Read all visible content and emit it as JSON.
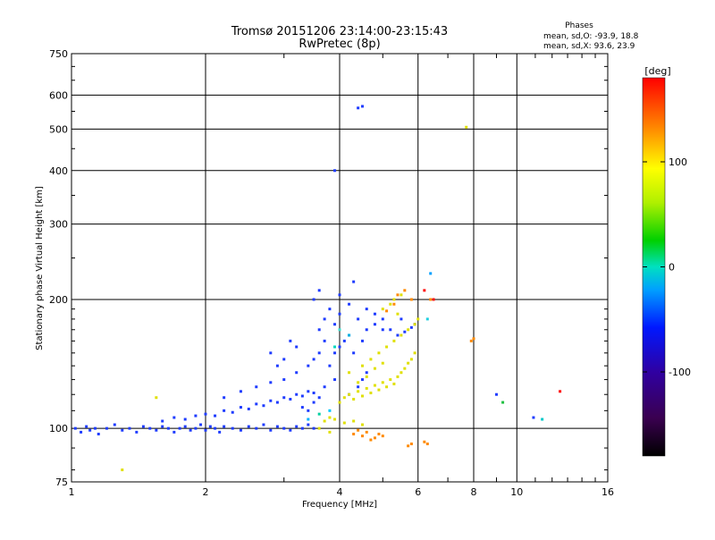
{
  "chart_data": {
    "type": "scatter",
    "title": "Tromsø 20151206 23:14:00-23:15:43",
    "subtitle": "RwPretec (8p)",
    "xlabel": "Frequency [MHz]",
    "ylabel": "Stationary phase Virtual Height [km]",
    "xscale": "log",
    "yscale": "log",
    "xlim": [
      1,
      16
    ],
    "ylim": [
      75,
      750
    ],
    "x_ticks": [
      1,
      2,
      4,
      6,
      8,
      10,
      16
    ],
    "x_tick_labels": [
      "1",
      "2",
      "4",
      "6",
      "8",
      "10",
      "16"
    ],
    "y_ticks": [
      75,
      100,
      200,
      300,
      400,
      500,
      600,
      750
    ],
    "y_tick_labels": [
      "75",
      "100",
      "200",
      "300",
      "400",
      "500",
      "600",
      "750"
    ],
    "grid": true,
    "phases_info": {
      "title": "Phases",
      "line_o": "mean, sd,O: -93.9, 18.8",
      "line_x": "mean, sd,X:  93.6, 23.9"
    },
    "colorbar": {
      "unit_label": "[deg]",
      "range": [
        -180,
        180
      ],
      "ticks": [
        100,
        0,
        -100
      ],
      "tick_labels": [
        "100",
        "0",
        "-100"
      ]
    },
    "series": [
      {
        "name": "O-mode (blue)",
        "phase": -100,
        "color": "#1f3cff",
        "points": [
          [
            1.02,
            100
          ],
          [
            1.05,
            98
          ],
          [
            1.08,
            101
          ],
          [
            1.1,
            99
          ],
          [
            1.13,
            100
          ],
          [
            1.15,
            97
          ],
          [
            1.2,
            100
          ],
          [
            1.25,
            102
          ],
          [
            1.3,
            99
          ],
          [
            1.35,
            100
          ],
          [
            1.4,
            98
          ],
          [
            1.45,
            101
          ],
          [
            1.5,
            100
          ],
          [
            1.55,
            99
          ],
          [
            1.6,
            101
          ],
          [
            1.65,
            100
          ],
          [
            1.7,
            98
          ],
          [
            1.75,
            100
          ],
          [
            1.8,
            101
          ],
          [
            1.85,
            99
          ],
          [
            1.9,
            100
          ],
          [
            1.95,
            102
          ],
          [
            2.0,
            99
          ],
          [
            2.05,
            101
          ],
          [
            2.1,
            100
          ],
          [
            2.15,
            98
          ],
          [
            2.2,
            101
          ],
          [
            2.3,
            100
          ],
          [
            2.4,
            99
          ],
          [
            2.5,
            101
          ],
          [
            2.6,
            100
          ],
          [
            2.7,
            102
          ],
          [
            2.8,
            99
          ],
          [
            2.9,
            101
          ],
          [
            3.0,
            100
          ],
          [
            3.1,
            99
          ],
          [
            3.2,
            101
          ],
          [
            3.3,
            100
          ],
          [
            3.4,
            102
          ],
          [
            3.5,
            100
          ],
          [
            1.6,
            104
          ],
          [
            1.7,
            106
          ],
          [
            1.8,
            105
          ],
          [
            1.9,
            107
          ],
          [
            2.0,
            108
          ],
          [
            2.1,
            107
          ],
          [
            2.2,
            110
          ],
          [
            2.3,
            109
          ],
          [
            2.4,
            112
          ],
          [
            2.5,
            111
          ],
          [
            2.6,
            114
          ],
          [
            2.7,
            113
          ],
          [
            2.8,
            116
          ],
          [
            2.9,
            115
          ],
          [
            3.0,
            118
          ],
          [
            3.1,
            117
          ],
          [
            3.2,
            120
          ],
          [
            3.3,
            119
          ],
          [
            3.4,
            122
          ],
          [
            3.5,
            121
          ],
          [
            2.2,
            118
          ],
          [
            2.4,
            122
          ],
          [
            2.6,
            125
          ],
          [
            2.8,
            128
          ],
          [
            3.0,
            130
          ],
          [
            3.2,
            135
          ],
          [
            3.4,
            140
          ],
          [
            3.5,
            145
          ],
          [
            3.6,
            150
          ],
          [
            3.7,
            160
          ],
          [
            3.6,
            170
          ],
          [
            3.7,
            180
          ],
          [
            3.8,
            190
          ],
          [
            3.9,
            175
          ],
          [
            4.0,
            185
          ],
          [
            4.2,
            195
          ],
          [
            4.4,
            180
          ],
          [
            4.6,
            190
          ],
          [
            4.8,
            185
          ],
          [
            5.0,
            180
          ],
          [
            3.8,
            140
          ],
          [
            3.9,
            150
          ],
          [
            4.0,
            155
          ],
          [
            4.1,
            160
          ],
          [
            4.2,
            165
          ],
          [
            4.3,
            150
          ],
          [
            4.5,
            160
          ],
          [
            4.6,
            170
          ],
          [
            4.8,
            175
          ],
          [
            5.0,
            170
          ],
          [
            4.2,
            120
          ],
          [
            4.4,
            125
          ],
          [
            4.5,
            130
          ],
          [
            4.6,
            135
          ],
          [
            3.9,
            130
          ],
          [
            3.7,
            125
          ],
          [
            3.5,
            115
          ],
          [
            3.4,
            110
          ],
          [
            3.3,
            112
          ],
          [
            3.6,
            118
          ],
          [
            3.5,
            200
          ],
          [
            3.6,
            210
          ],
          [
            4.3,
            220
          ],
          [
            4.0,
            205
          ],
          [
            5.2,
            170
          ],
          [
            5.4,
            165
          ],
          [
            5.6,
            168
          ],
          [
            5.8,
            172
          ],
          [
            5.9,
            175
          ],
          [
            5.5,
            180
          ],
          [
            3.9,
            400
          ],
          [
            4.4,
            560
          ],
          [
            4.5,
            565
          ],
          [
            10.9,
            106
          ],
          [
            9.0,
            120
          ],
          [
            3.0,
            145
          ],
          [
            2.8,
            150
          ],
          [
            3.2,
            155
          ],
          [
            3.1,
            160
          ],
          [
            2.9,
            140
          ]
        ]
      },
      {
        "name": "X-mode (yellow)",
        "phase": 100,
        "color": "#e0e000",
        "points": [
          [
            4.0,
            115
          ],
          [
            4.1,
            118
          ],
          [
            4.2,
            120
          ],
          [
            4.3,
            117
          ],
          [
            4.4,
            122
          ],
          [
            4.5,
            119
          ],
          [
            4.6,
            124
          ],
          [
            4.7,
            121
          ],
          [
            4.8,
            126
          ],
          [
            4.9,
            123
          ],
          [
            5.0,
            128
          ],
          [
            5.1,
            125
          ],
          [
            5.2,
            130
          ],
          [
            5.3,
            127
          ],
          [
            5.4,
            132
          ],
          [
            5.5,
            135
          ],
          [
            5.6,
            138
          ],
          [
            5.7,
            142
          ],
          [
            5.8,
            145
          ],
          [
            5.9,
            150
          ],
          [
            4.5,
            140
          ],
          [
            4.7,
            145
          ],
          [
            4.9,
            150
          ],
          [
            5.1,
            155
          ],
          [
            5.3,
            160
          ],
          [
            5.5,
            165
          ],
          [
            5.7,
            170
          ],
          [
            5.9,
            175
          ],
          [
            6.0,
            180
          ],
          [
            5.4,
            185
          ],
          [
            5.0,
            190
          ],
          [
            5.2,
            195
          ],
          [
            5.3,
            200
          ],
          [
            5.5,
            205
          ],
          [
            3.7,
            104
          ],
          [
            3.8,
            106
          ],
          [
            3.9,
            105
          ],
          [
            4.1,
            103
          ],
          [
            4.3,
            104
          ],
          [
            4.5,
            102
          ],
          [
            4.2,
            135
          ],
          [
            4.4,
            128
          ],
          [
            4.6,
            132
          ],
          [
            4.8,
            138
          ],
          [
            5.0,
            142
          ],
          [
            7.7,
            505
          ],
          [
            1.3,
            80
          ],
          [
            1.55,
            118
          ],
          [
            3.6,
            100
          ],
          [
            3.8,
            98
          ]
        ]
      },
      {
        "name": "X-mode (orange)",
        "phase": 140,
        "color": "#ff8a00",
        "points": [
          [
            4.3,
            97
          ],
          [
            4.5,
            96
          ],
          [
            4.6,
            98
          ],
          [
            4.8,
            95
          ],
          [
            4.9,
            97
          ],
          [
            5.0,
            96
          ],
          [
            5.4,
            205
          ],
          [
            5.6,
            210
          ],
          [
            5.8,
            200
          ],
          [
            6.3,
            92
          ],
          [
            6.2,
            93
          ],
          [
            5.7,
            91
          ],
          [
            5.8,
            92
          ],
          [
            7.9,
            160
          ],
          [
            8.0,
            162
          ],
          [
            5.3,
            195
          ],
          [
            5.1,
            188
          ],
          [
            4.4,
            99
          ],
          [
            4.7,
            94
          ],
          [
            6.4,
            200
          ]
        ]
      },
      {
        "name": "Misc (cyan/green/red)",
        "phase": 0,
        "color": "#00c8c8",
        "points": [
          [
            3.4,
            105
          ],
          [
            3.6,
            108
          ],
          [
            3.8,
            110
          ],
          [
            4.0,
            170
          ],
          [
            4.2,
            165
          ],
          [
            3.9,
            155
          ],
          [
            6.4,
            230
          ],
          [
            6.3,
            180
          ],
          [
            9.3,
            115
          ],
          [
            11.4,
            105
          ]
        ],
        "extra_colors": [
          "#00b4ff",
          "#00d0a0",
          "#00c8ff",
          "#40e0d0",
          "#00b0e0",
          "#00d8c0",
          "#00a0ff",
          "#20d0e0",
          "#20c040",
          "#00c8c8"
        ]
      },
      {
        "name": "Red",
        "phase": 170,
        "color": "#ff1010",
        "points": [
          [
            12.5,
            122
          ],
          [
            6.5,
            200
          ],
          [
            6.2,
            210
          ]
        ]
      }
    ]
  }
}
